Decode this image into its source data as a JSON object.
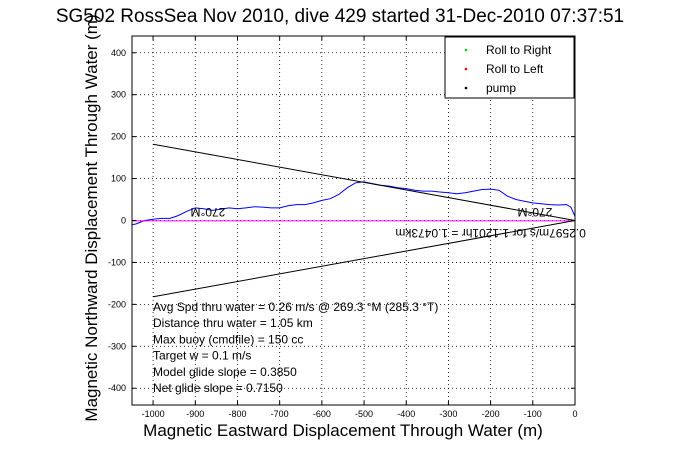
{
  "chart_data": {
    "type": "line",
    "title": "SG502 RossSea Nov 2010, dive 429 started 31-Dec-2010 07:37:51",
    "xlabel": "Magnetic Eastward Displacement Through Water (m)",
    "ylabel": "Magnetic Northward Displacement Through Water (m)",
    "xlim": [
      -1050,
      0
    ],
    "ylim": [
      -440,
      440
    ],
    "xticks": [
      -1000,
      -900,
      -800,
      -700,
      -600,
      -500,
      -400,
      -300,
      -200,
      -100,
      0
    ],
    "yticks": [
      -400,
      -300,
      -200,
      -100,
      0,
      100,
      200,
      300,
      400
    ],
    "grid": true,
    "legend_position": "top-right",
    "legend": [
      {
        "label": "Roll to Right",
        "color": "#00cc00",
        "marker": "."
      },
      {
        "label": "Roll to Left",
        "color": "#ff0000",
        "marker": "."
      },
      {
        "label": "pump",
        "color": "#000000",
        "marker": "."
      }
    ],
    "series": [
      {
        "color": "#0000ff",
        "x": [
          -1050,
          -1040,
          -1020,
          -1000,
          -980,
          -960,
          -940,
          -920,
          -900,
          -880,
          -860,
          -840,
          -820,
          -800,
          -780,
          -760,
          -740,
          -720,
          -700,
          -680,
          -660,
          -640,
          -620,
          -600,
          -580,
          -560,
          -540,
          -520,
          -500,
          -480,
          -460,
          -440,
          -420,
          -400,
          -380,
          -360,
          -340,
          -320,
          -300,
          -280,
          -260,
          -240,
          -220,
          -200,
          -180,
          -160,
          -140,
          -120,
          -100,
          -80,
          -60,
          -40,
          -20,
          -10,
          0
        ],
        "y": [
          -10,
          -8,
          0,
          3,
          5,
          5,
          12,
          22,
          30,
          28,
          24,
          27,
          30,
          28,
          30,
          33,
          32,
          30,
          30,
          35,
          38,
          38,
          42,
          48,
          52,
          62,
          78,
          90,
          92,
          88,
          84,
          82,
          78,
          76,
          72,
          70,
          70,
          68,
          66,
          64,
          66,
          70,
          74,
          75,
          72,
          58,
          50,
          46,
          42,
          40,
          38,
          37,
          38,
          32,
          10
        ]
      },
      {
        "color": "#ff00ff",
        "x": [
          -1050,
          0
        ],
        "y": [
          -1,
          -1
        ]
      },
      {
        "color": "#000000",
        "x": [
          -1000,
          0
        ],
        "y": [
          182,
          0
        ]
      },
      {
        "color": "#000000",
        "x": [
          -1000,
          0
        ],
        "y": [
          -182,
          0
        ]
      }
    ],
    "annotations": [
      {
        "text": "270°M",
        "x": -870,
        "y": 30,
        "rotate": 180
      },
      {
        "text": "270°M",
        "x": -95,
        "y": 30,
        "rotate": 180
      },
      {
        "text": "0.2597m/s for 1.1201hr = 1.0473km",
        "x": -200,
        "y": -20,
        "rotate": 180
      }
    ],
    "stats": [
      "Avg Spd thru water =  0.26 m/s @ 269.3   °M (285.3 °T)",
      "Distance thru water =  1.05 km",
      "Max buoy (cmdfile) = 150 cc",
      "Target w = 0.1 m/s",
      "Model glide slope = 0.3850",
      "Net glide slope = 0.7150"
    ]
  }
}
